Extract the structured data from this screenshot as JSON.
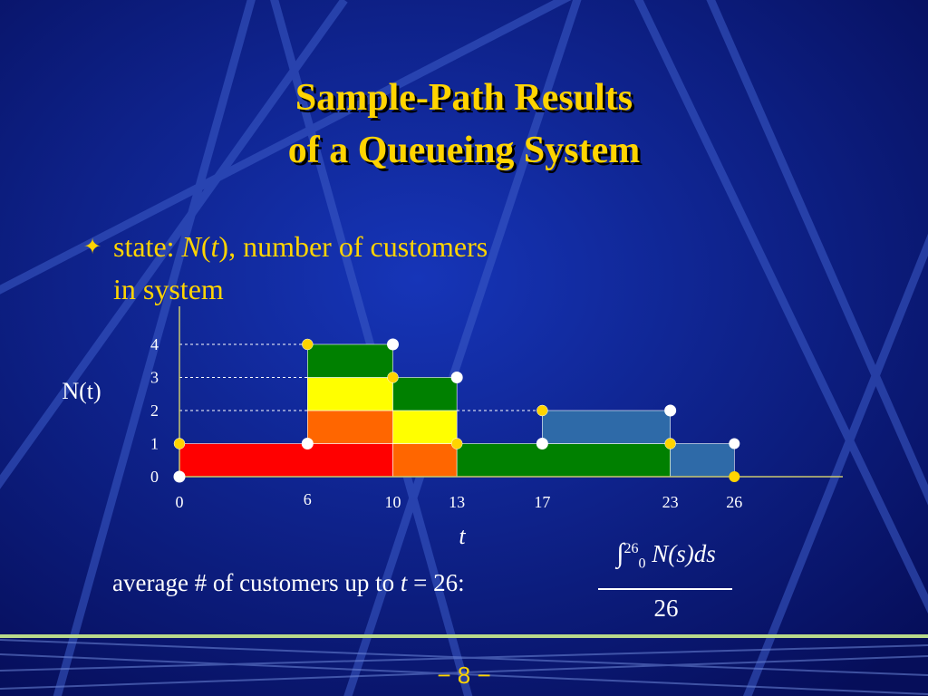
{
  "slide": {
    "title_line1": "Sample-Path Results",
    "title_line2": "of a Queueing System",
    "bullet_prefix": "state:  ",
    "bullet_var": "N",
    "bullet_arg": "t",
    "bullet_rest": ", number of customers in system",
    "avg_prefix": "average # of customers up to ",
    "avg_var": "t",
    "avg_suffix": " = 26:",
    "formula_integrand": "N(s)ds",
    "formula_lower": "0",
    "formula_upper": "26",
    "formula_denominator": "26",
    "page_number": "−  8  −",
    "colors": {
      "title": "#ffd400",
      "background": "#0c1a80",
      "text": "#ffffff"
    }
  },
  "chart_data": {
    "type": "area",
    "ylabel": "N(t)",
    "xlabel": "t",
    "x_ticks": [
      "0",
      "6",
      "10",
      "13",
      "17",
      "23",
      "26"
    ],
    "y_ticks": [
      "0",
      "1",
      "2",
      "3",
      "4"
    ],
    "xlim": [
      0,
      26
    ],
    "ylim": [
      0,
      4
    ],
    "step_path": [
      {
        "from": 0,
        "to": 6,
        "N": 1
      },
      {
        "from": 6,
        "to": 10,
        "N": 4
      },
      {
        "from": 10,
        "to": 13,
        "N": 3
      },
      {
        "from": 13,
        "to": 17,
        "N": 1
      },
      {
        "from": 17,
        "to": 23,
        "N": 2
      },
      {
        "from": 23,
        "to": 26,
        "N": 1
      }
    ],
    "blocks": [
      {
        "x0": 0,
        "x1": 10,
        "y0": 0,
        "y1": 1,
        "color": "#ff0000"
      },
      {
        "x0": 6,
        "x1": 13,
        "y0": 1,
        "y1": 2,
        "color": "#ff6600"
      },
      {
        "x0": 10,
        "x1": 13,
        "y0": 0,
        "y1": 1,
        "color": "#ff6600"
      },
      {
        "x0": 6,
        "x1": 10,
        "y0": 2,
        "y1": 3,
        "color": "#ffff00"
      },
      {
        "x0": 10,
        "x1": 13,
        "y0": 1,
        "y1": 2,
        "color": "#ffff00"
      },
      {
        "x0": 6,
        "x1": 10,
        "y0": 3,
        "y1": 4,
        "color": "#008000"
      },
      {
        "x0": 10,
        "x1": 13,
        "y0": 2,
        "y1": 3,
        "color": "#008000"
      },
      {
        "x0": 13,
        "x1": 23,
        "y0": 0,
        "y1": 1,
        "color": "#008000"
      },
      {
        "x0": 17,
        "x1": 23,
        "y0": 1,
        "y1": 2,
        "color": "#2e6aa8"
      },
      {
        "x0": 23,
        "x1": 26,
        "y0": 0,
        "y1": 1,
        "color": "#2e6aa8"
      }
    ]
  }
}
